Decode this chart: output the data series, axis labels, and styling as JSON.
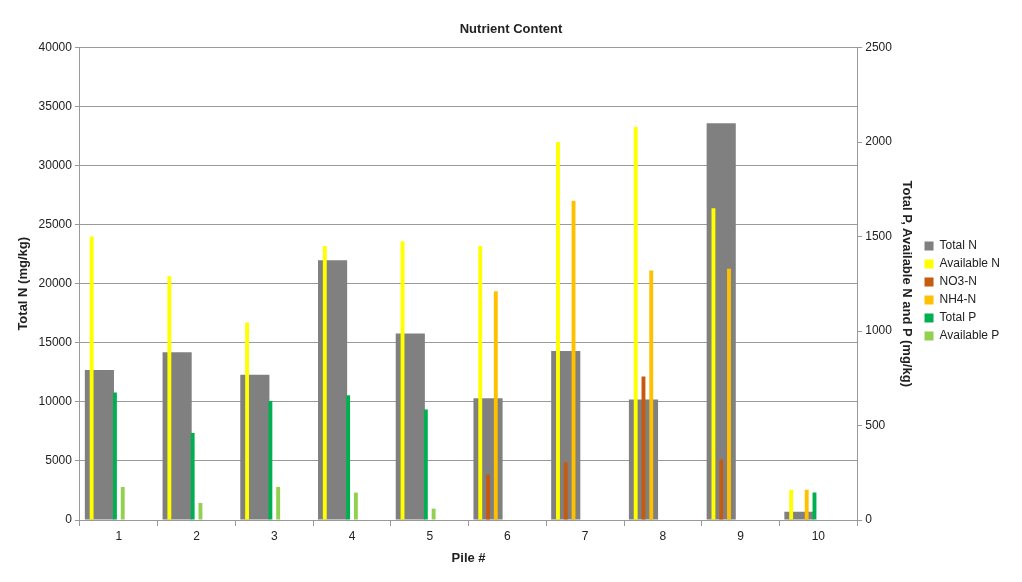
{
  "chart_data": {
    "type": "bar",
    "title": "Nutrient Content",
    "xlabel": "Pile #",
    "ylabel": "Total N (mg/kg)",
    "y2label": "Total P, Available N and P (mg/kg)",
    "categories": [
      "1",
      "2",
      "3",
      "4",
      "5",
      "6",
      "7",
      "8",
      "9",
      "10"
    ],
    "series": [
      {
        "name": "Total N",
        "color": "#808080",
        "values": [
          12700,
          14200,
          12300,
          22000,
          15800,
          10300,
          14300,
          10200,
          33600,
          700
        ]
      },
      {
        "name": "Available N",
        "color": "#ffff00",
        "axis": "y2",
        "values": [
          1500,
          1290,
          1045,
          1450,
          1475,
          1450,
          2000,
          2080,
          1650,
          160
        ]
      },
      {
        "name": "NO3-N",
        "color": "#c55a11",
        "axis": "y2",
        "values": [
          null,
          null,
          null,
          null,
          null,
          240,
          305,
          760,
          320,
          null
        ]
      },
      {
        "name": "NH4-N",
        "color": "#ffc000",
        "axis": "y2",
        "values": [
          null,
          null,
          null,
          null,
          null,
          1210,
          1690,
          1320,
          1330,
          160
        ]
      },
      {
        "name": "Total P",
        "color": "#00b050",
        "axis": "y2",
        "values": [
          675,
          460,
          630,
          660,
          585,
          null,
          null,
          null,
          null,
          145
        ]
      },
      {
        "name": "Available P",
        "color": "#92d050",
        "axis": "y2",
        "values": [
          175,
          90,
          175,
          145,
          60,
          null,
          null,
          null,
          null,
          null
        ]
      }
    ],
    "ylim": [
      0,
      40000
    ],
    "yticks": [
      0,
      5000,
      10000,
      15000,
      20000,
      25000,
      30000,
      35000,
      40000
    ],
    "y2lim": [
      0,
      2500
    ],
    "y2ticks": [
      0,
      500,
      1000,
      1500,
      2000,
      2500
    ],
    "grid": "y",
    "legend": "right"
  }
}
